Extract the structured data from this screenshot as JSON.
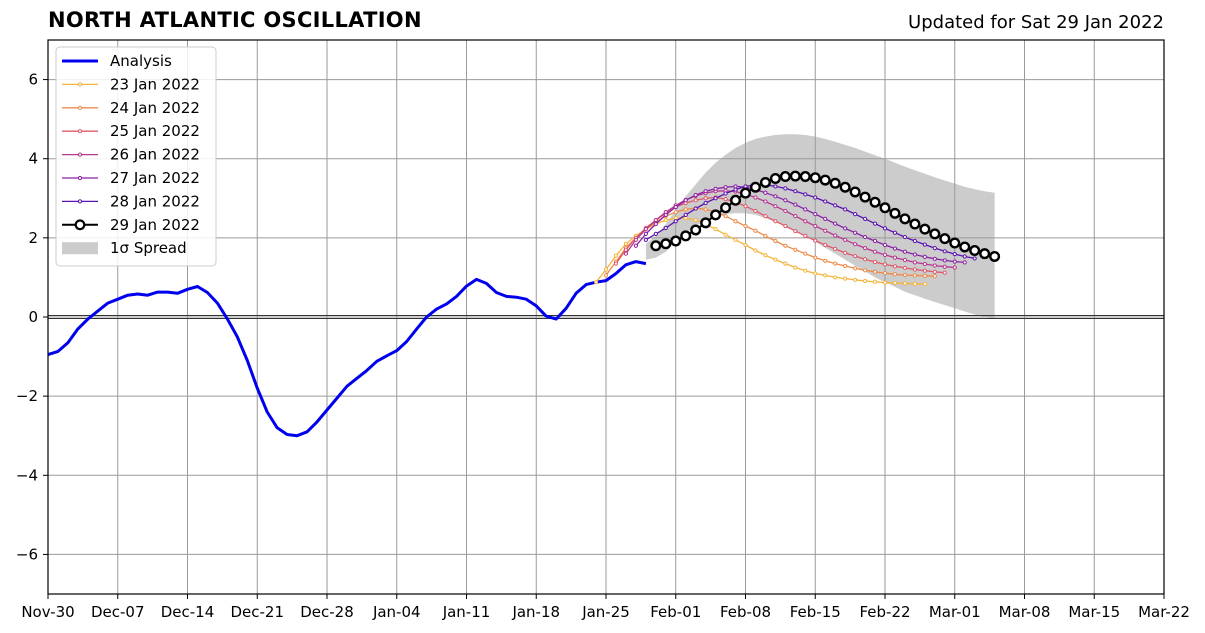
{
  "header": {
    "title": "NORTH ATLANTIC OSCILLATION",
    "updated": "Updated for Sat 29 Jan 2022"
  },
  "chart_data": {
    "type": "line",
    "title": "NORTH ATLANTIC OSCILLATION",
    "xlim": [
      "2021-11-30",
      "2022-03-22"
    ],
    "ylim": [
      -7,
      7
    ],
    "grid": true,
    "legend_position": "top-left",
    "x_ticks": [
      {
        "date": "2021-11-30",
        "label": "Nov-30"
      },
      {
        "date": "2021-12-07",
        "label": "Dec-07"
      },
      {
        "date": "2021-12-14",
        "label": "Dec-14"
      },
      {
        "date": "2021-12-21",
        "label": "Dec-21"
      },
      {
        "date": "2021-12-28",
        "label": "Dec-28"
      },
      {
        "date": "2022-01-04",
        "label": "Jan-04"
      },
      {
        "date": "2022-01-11",
        "label": "Jan-11"
      },
      {
        "date": "2022-01-18",
        "label": "Jan-18"
      },
      {
        "date": "2022-01-25",
        "label": "Jan-25"
      },
      {
        "date": "2022-02-01",
        "label": "Feb-01"
      },
      {
        "date": "2022-02-08",
        "label": "Feb-08"
      },
      {
        "date": "2022-02-15",
        "label": "Feb-15"
      },
      {
        "date": "2022-02-22",
        "label": "Feb-22"
      },
      {
        "date": "2022-03-01",
        "label": "Mar-01"
      },
      {
        "date": "2022-03-08",
        "label": "Mar-08"
      },
      {
        "date": "2022-03-15",
        "label": "Mar-15"
      },
      {
        "date": "2022-03-22",
        "label": "Mar-22"
      }
    ],
    "y_ticks": [
      {
        "value": -6,
        "label": "−6"
      },
      {
        "value": -4,
        "label": "−4"
      },
      {
        "value": -2,
        "label": "−2"
      },
      {
        "value": 0,
        "label": "0"
      },
      {
        "value": 2,
        "label": "2"
      },
      {
        "value": 4,
        "label": "4"
      },
      {
        "value": 6,
        "label": "6"
      }
    ],
    "analysis": {
      "name": "Analysis",
      "color": "#0000ee",
      "start_date": "2021-11-30",
      "values": [
        -0.95,
        -0.87,
        -0.65,
        -0.3,
        -0.05,
        0.15,
        0.35,
        0.45,
        0.55,
        0.58,
        0.55,
        0.63,
        0.63,
        0.6,
        0.7,
        0.77,
        0.62,
        0.35,
        -0.05,
        -0.5,
        -1.1,
        -1.8,
        -2.4,
        -2.8,
        -2.97,
        -3.0,
        -2.9,
        -2.65,
        -2.35,
        -2.05,
        -1.75,
        -1.55,
        -1.35,
        -1.12,
        -0.98,
        -0.85,
        -0.62,
        -0.3,
        0.0,
        0.2,
        0.33,
        0.52,
        0.78,
        0.95,
        0.85,
        0.62,
        0.52,
        0.5,
        0.45,
        0.28,
        0.02,
        -0.05,
        0.22,
        0.6,
        0.82,
        0.88,
        0.92,
        1.1,
        1.32,
        1.4,
        1.35
      ]
    },
    "forecasts": [
      {
        "name": "23 Jan 2022",
        "color": "#f5b43c",
        "start_date": "2022-01-24",
        "values": [
          0.88,
          1.2,
          1.55,
          1.85,
          2.05,
          2.22,
          2.35,
          2.45,
          2.5,
          2.5,
          2.45,
          2.35,
          2.22,
          2.08,
          1.95,
          1.82,
          1.68,
          1.56,
          1.45,
          1.35,
          1.25,
          1.17,
          1.1,
          1.05,
          1.0,
          0.97,
          0.94,
          0.91,
          0.89,
          0.87,
          0.86,
          0.85,
          0.84,
          0.83
        ]
      },
      {
        "name": "24 Jan 2022",
        "color": "#ee8a48",
        "start_date": "2022-01-25",
        "values": [
          1.05,
          1.4,
          1.75,
          2.0,
          2.22,
          2.4,
          2.55,
          2.65,
          2.72,
          2.75,
          2.72,
          2.65,
          2.55,
          2.42,
          2.3,
          2.18,
          2.05,
          1.92,
          1.8,
          1.7,
          1.6,
          1.5,
          1.42,
          1.35,
          1.29,
          1.23,
          1.18,
          1.14,
          1.11,
          1.08,
          1.06,
          1.05,
          1.04,
          1.03
        ]
      },
      {
        "name": "25 Jan 2022",
        "color": "#de5a6a",
        "start_date": "2022-01-26",
        "values": [
          1.35,
          1.7,
          2.0,
          2.25,
          2.45,
          2.62,
          2.78,
          2.88,
          2.95,
          3.0,
          3.02,
          2.98,
          2.9,
          2.8,
          2.68,
          2.55,
          2.42,
          2.3,
          2.17,
          2.05,
          1.93,
          1.82,
          1.72,
          1.62,
          1.54,
          1.46,
          1.39,
          1.33,
          1.28,
          1.24,
          1.2,
          1.17,
          1.14,
          1.12
        ]
      },
      {
        "name": "26 Jan 2022",
        "color": "#b83790",
        "start_date": "2022-01-27",
        "values": [
          1.6,
          1.95,
          2.22,
          2.45,
          2.65,
          2.82,
          2.96,
          3.06,
          3.13,
          3.18,
          3.19,
          3.17,
          3.1,
          3.02,
          2.92,
          2.8,
          2.68,
          2.55,
          2.42,
          2.3,
          2.18,
          2.06,
          1.95,
          1.84,
          1.74,
          1.65,
          1.57,
          1.5,
          1.44,
          1.38,
          1.34,
          1.3,
          1.27,
          1.25
        ]
      },
      {
        "name": "27 Jan 2022",
        "color": "#8a22a6",
        "start_date": "2022-01-28",
        "values": [
          1.8,
          2.1,
          2.35,
          2.58,
          2.78,
          2.95,
          3.08,
          3.18,
          3.24,
          3.28,
          3.3,
          3.28,
          3.22,
          3.14,
          3.05,
          2.95,
          2.84,
          2.72,
          2.6,
          2.48,
          2.36,
          2.24,
          2.13,
          2.02,
          1.92,
          1.82,
          1.73,
          1.65,
          1.58,
          1.52,
          1.47,
          1.43,
          1.4,
          1.38
        ]
      },
      {
        "name": "28 Jan 2022",
        "color": "#5d13b0",
        "start_date": "2022-01-29",
        "values": [
          1.95,
          2.1,
          2.25,
          2.42,
          2.58,
          2.74,
          2.88,
          3.0,
          3.12,
          3.22,
          3.3,
          3.34,
          3.34,
          3.3,
          3.25,
          3.18,
          3.1,
          3.02,
          2.92,
          2.82,
          2.72,
          2.6,
          2.48,
          2.36,
          2.24,
          2.13,
          2.02,
          1.92,
          1.83,
          1.74,
          1.66,
          1.59,
          1.53,
          1.48
        ]
      },
      {
        "name": "29 Jan 2022",
        "color": "#000000",
        "start_date": "2022-01-30",
        "values": [
          1.8,
          1.85,
          1.92,
          2.05,
          2.2,
          2.38,
          2.58,
          2.76,
          2.95,
          3.13,
          3.28,
          3.4,
          3.5,
          3.55,
          3.56,
          3.55,
          3.52,
          3.46,
          3.38,
          3.28,
          3.16,
          3.03,
          2.9,
          2.76,
          2.62,
          2.48,
          2.35,
          2.22,
          2.1,
          1.98,
          1.87,
          1.77,
          1.68,
          1.6,
          1.53
        ]
      }
    ],
    "spread": {
      "name": "1σ Spread",
      "color": "#cccccc",
      "start_date": "2022-01-29",
      "upper": [
        1.85,
        2.05,
        2.35,
        2.7,
        3.05,
        3.35,
        3.65,
        3.9,
        4.1,
        4.27,
        4.4,
        4.5,
        4.56,
        4.6,
        4.62,
        4.62,
        4.6,
        4.56,
        4.5,
        4.43,
        4.35,
        4.27,
        4.18,
        4.09,
        4.0,
        3.9,
        3.8,
        3.71,
        3.62,
        3.53,
        3.45,
        3.37,
        3.29,
        3.23,
        3.18,
        3.14
      ],
      "lower": [
        1.45,
        1.5,
        1.65,
        1.9,
        2.12,
        2.3,
        2.45,
        2.55,
        2.6,
        2.62,
        2.62,
        2.58,
        2.5,
        2.4,
        2.3,
        2.18,
        2.05,
        1.9,
        1.75,
        1.6,
        1.45,
        1.3,
        1.15,
        1.0,
        0.88,
        0.76,
        0.64,
        0.55,
        0.46,
        0.38,
        0.3,
        0.22,
        0.14,
        0.06,
        0.0,
        -0.05
      ]
    }
  }
}
